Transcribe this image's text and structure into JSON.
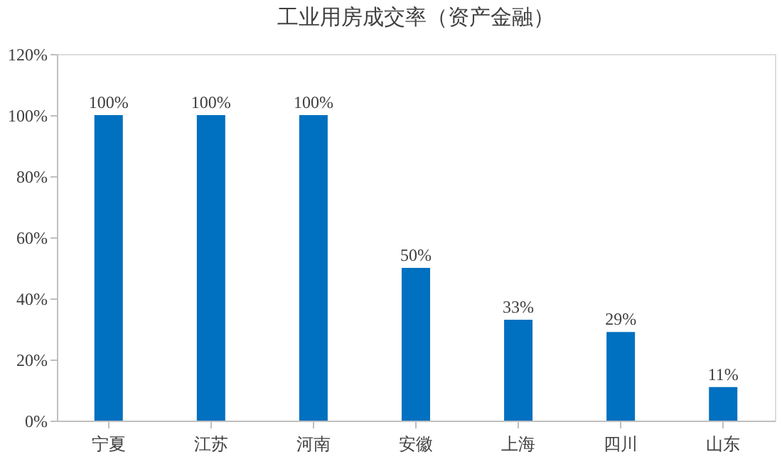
{
  "chart_data": {
    "type": "bar",
    "title": "工业用房成交率（资产金融）",
    "categories": [
      "宁夏",
      "江苏",
      "河南",
      "安徽",
      "上海",
      "四川",
      "山东"
    ],
    "values": [
      100,
      100,
      100,
      50,
      33,
      29,
      11
    ],
    "value_labels": [
      "100%",
      "100%",
      "100%",
      "50%",
      "33%",
      "29%",
      "11%"
    ],
    "color": "#0070c0",
    "ylim": [
      0,
      120
    ],
    "yticks": [
      {
        "value": 0,
        "label": "0%"
      },
      {
        "value": 20,
        "label": "20%"
      },
      {
        "value": 40,
        "label": "40%"
      },
      {
        "value": 60,
        "label": "60%"
      },
      {
        "value": 80,
        "label": "80%"
      },
      {
        "value": 100,
        "label": "100%"
      },
      {
        "value": 120,
        "label": "120%"
      }
    ],
    "grid": false
  }
}
